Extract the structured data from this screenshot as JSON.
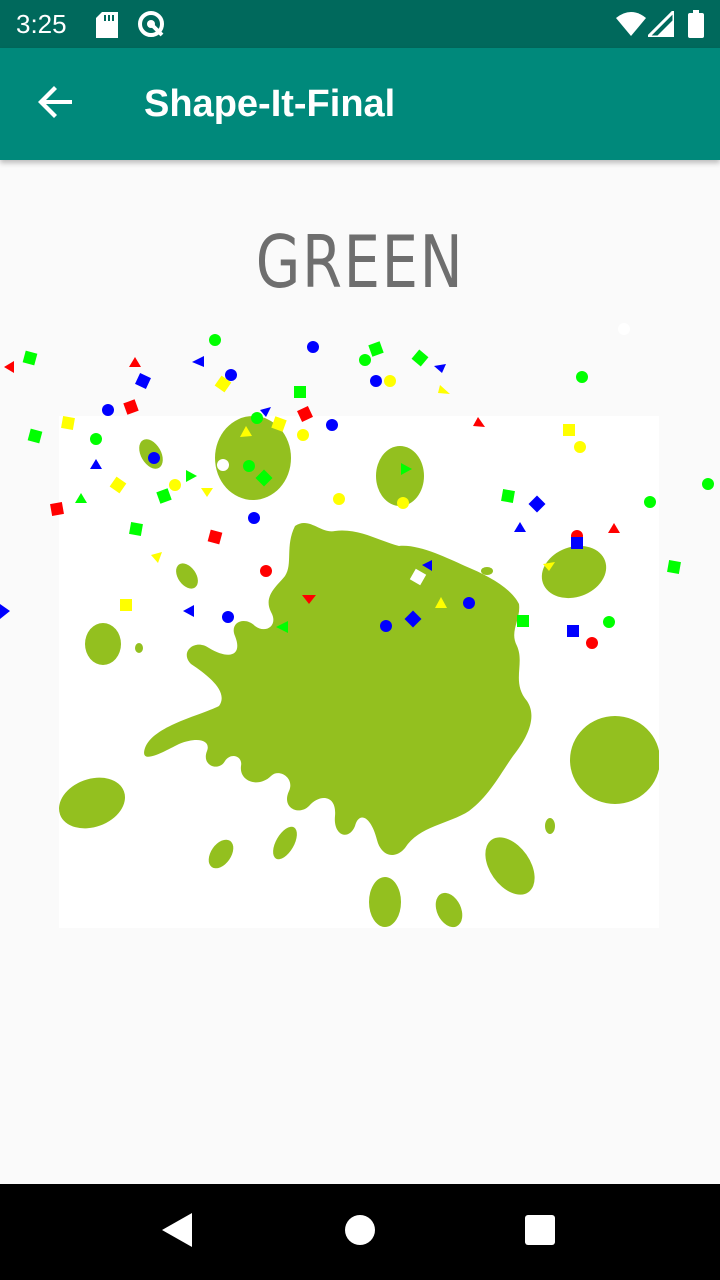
{
  "status_bar": {
    "time": "3:25",
    "left_icons": [
      "sd-card-icon",
      "data-saver-icon"
    ],
    "right_icons": [
      "wifi-icon",
      "cell-signal-icon",
      "battery-icon"
    ],
    "background_color": "#00695c"
  },
  "app_bar": {
    "title": "Shape-It-Final",
    "back_icon": "arrow-back-icon",
    "background_color": "#00897b"
  },
  "main": {
    "color_word": "GREEN",
    "color_word_color": "#6e6e6e",
    "splat_color": "#93c01f",
    "confetti_colors": [
      "#ff0000",
      "#00ff00",
      "#0000ff",
      "#ffff00",
      "#ffffff"
    ]
  },
  "nav_bar": {
    "back_icon": "nav-back-icon",
    "home_icon": "nav-home-icon",
    "recents_icon": "nav-recents-icon"
  }
}
